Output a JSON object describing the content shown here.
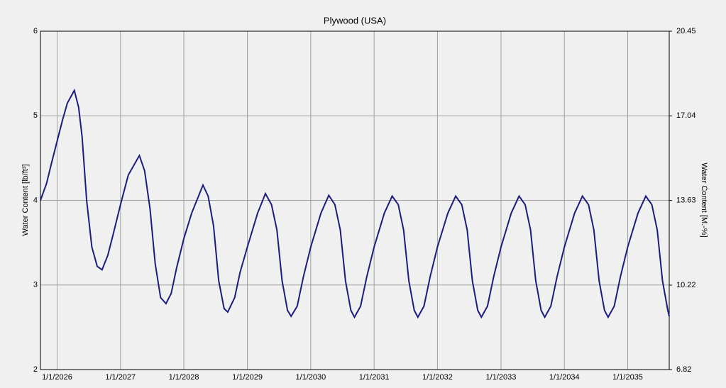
{
  "chart_data": {
    "type": "line",
    "title": "Plywood (USA)",
    "ylabel": "Water Content [lb/ft³]",
    "y2label": "Water Content [M.-%]",
    "xlim": [
      "9/27/2025",
      "8/28/2035"
    ],
    "xticks": [
      "1/1/2026",
      "1/1/2027",
      "1/1/2028",
      "1/1/2029",
      "1/1/2030",
      "1/1/2031",
      "1/1/2032",
      "1/1/2033",
      "1/1/2034",
      "1/1/2035"
    ],
    "ylim": [
      2,
      6
    ],
    "yticks": [
      2,
      3,
      4,
      5,
      6
    ],
    "y2lim": [
      6.82,
      20.45
    ],
    "y2ticks": [
      6.82,
      10.22,
      13.63,
      17.04,
      20.45
    ],
    "grid": true,
    "x": [
      "9/27/2025",
      "11/1/2025",
      "12/1/2025",
      "1/1/2026",
      "2/1/2026",
      "3/1/2026",
      "4/10/2026",
      "5/5/2026",
      "5/25/2026",
      "6/20/2026",
      "7/20/2026",
      "8/20/2026",
      "9/17/2026",
      "10/20/2026",
      "11/20/2026",
      "1/1/2027",
      "2/15/2027",
      "4/20/2027",
      "5/20/2027",
      "6/20/2027",
      "7/20/2027",
      "8/20/2027",
      "9/20/2027",
      "10/20/2027",
      "11/20/2027",
      "1/1/2028",
      "2/15/2028",
      "4/20/2028",
      "5/20/2028",
      "6/20/2028",
      "7/20/2028",
      "8/20/2028",
      "9/10/2028",
      "10/20/2028",
      "11/20/2028",
      "1/1/2029",
      "3/1/2029",
      "4/15/2029",
      "5/20/2029",
      "6/20/2029",
      "7/20/2029",
      "8/20/2029",
      "9/10/2029",
      "10/15/2029",
      "11/20/2029",
      "1/1/2030",
      "3/1/2030",
      "4/15/2030",
      "5/20/2030",
      "6/20/2030",
      "7/20/2030",
      "8/20/2030",
      "9/10/2030",
      "10/15/2030",
      "11/20/2030",
      "1/1/2031",
      "3/1/2031",
      "4/15/2031",
      "5/20/2031",
      "6/20/2031",
      "7/20/2031",
      "8/20/2031",
      "9/10/2031",
      "10/15/2031",
      "11/20/2031",
      "1/1/2032",
      "3/1/2032",
      "4/15/2032",
      "5/20/2032",
      "6/20/2032",
      "7/20/2032",
      "8/20/2032",
      "9/10/2032",
      "10/15/2032",
      "11/20/2032",
      "1/1/2033",
      "3/1/2033",
      "4/15/2033",
      "5/20/2033",
      "6/20/2033",
      "7/20/2033",
      "8/20/2033",
      "9/10/2033",
      "10/15/2033",
      "11/20/2033",
      "1/1/2034",
      "3/1/2034",
      "4/15/2034",
      "5/20/2034",
      "6/20/2034",
      "7/20/2034",
      "8/20/2034",
      "9/10/2034",
      "10/15/2034",
      "11/20/2034",
      "1/1/2035",
      "3/1/2035",
      "4/15/2035",
      "5/20/2035",
      "6/20/2035",
      "7/20/2035",
      "8/20/2035",
      "8/28/2035"
    ],
    "series": [
      {
        "color": "#1c1c80",
        "values": [
          4.0,
          4.2,
          4.45,
          4.7,
          4.95,
          5.15,
          5.3,
          5.1,
          4.75,
          4.0,
          3.45,
          3.22,
          3.18,
          3.35,
          3.6,
          3.95,
          4.3,
          4.53,
          4.35,
          3.9,
          3.25,
          2.85,
          2.78,
          2.9,
          3.2,
          3.55,
          3.85,
          4.18,
          4.05,
          3.7,
          3.05,
          2.72,
          2.68,
          2.85,
          3.15,
          3.45,
          3.85,
          4.08,
          3.95,
          3.65,
          3.05,
          2.7,
          2.63,
          2.75,
          3.1,
          3.45,
          3.85,
          4.06,
          3.95,
          3.65,
          3.05,
          2.7,
          2.62,
          2.75,
          3.1,
          3.45,
          3.85,
          4.05,
          3.95,
          3.65,
          3.05,
          2.7,
          2.62,
          2.75,
          3.1,
          3.45,
          3.85,
          4.05,
          3.95,
          3.65,
          3.05,
          2.7,
          2.62,
          2.75,
          3.1,
          3.45,
          3.85,
          4.05,
          3.95,
          3.65,
          3.05,
          2.7,
          2.62,
          2.75,
          3.1,
          3.45,
          3.85,
          4.05,
          3.95,
          3.65,
          3.05,
          2.7,
          2.62,
          2.75,
          3.1,
          3.45,
          3.85,
          4.05,
          3.95,
          3.65,
          3.05,
          2.7,
          2.63
        ]
      }
    ]
  }
}
